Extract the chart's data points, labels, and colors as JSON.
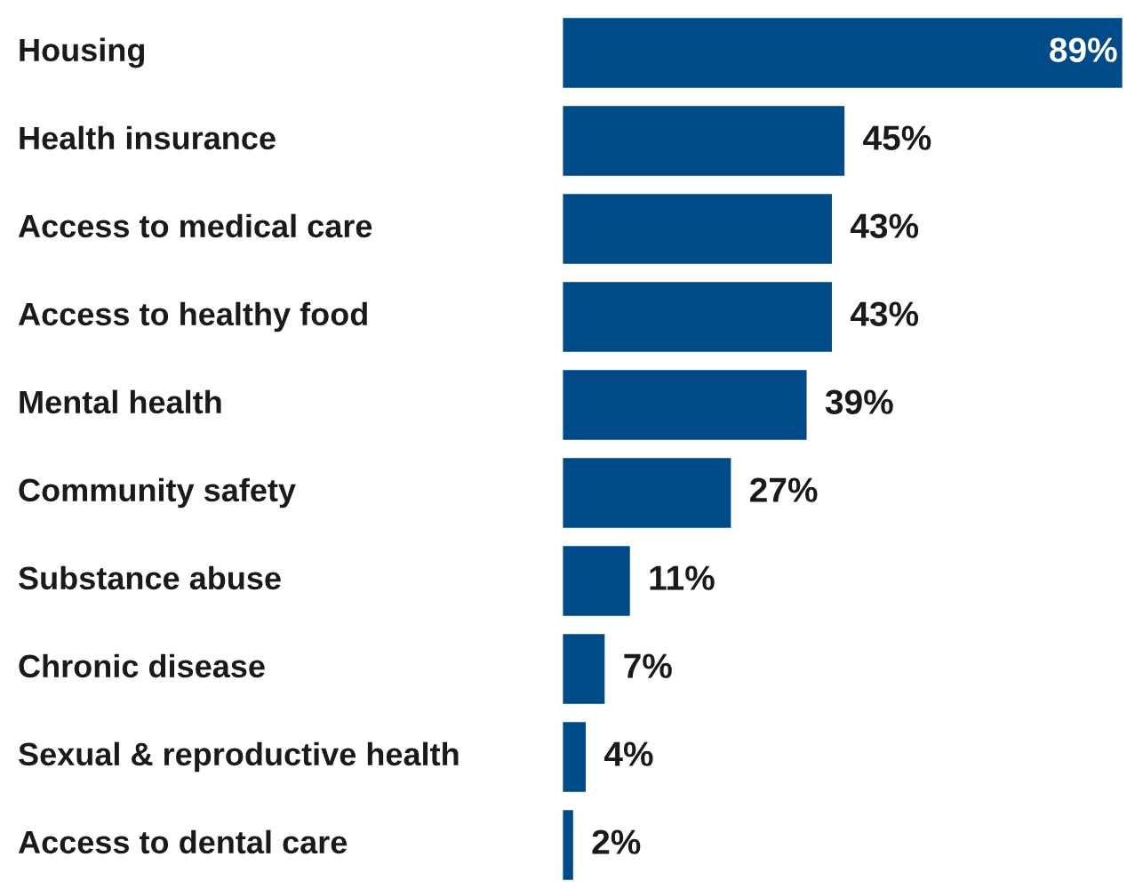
{
  "chart_data": {
    "type": "bar",
    "orientation": "horizontal",
    "categories": [
      "Housing",
      "Health insurance",
      "Access to medical care",
      "Access to healthy food",
      "Mental health",
      "Community safety",
      "Substance abuse",
      "Chronic disease",
      "Sexual & reproductive health",
      "Access to dental care"
    ],
    "values": [
      89,
      45,
      43,
      43,
      39,
      27,
      11,
      7,
      4,
      2
    ],
    "value_labels": [
      "89%",
      "45%",
      "43%",
      "43%",
      "39%",
      "27%",
      "11%",
      "7%",
      "4%",
      "2%"
    ],
    "color": "#004b87"
  }
}
